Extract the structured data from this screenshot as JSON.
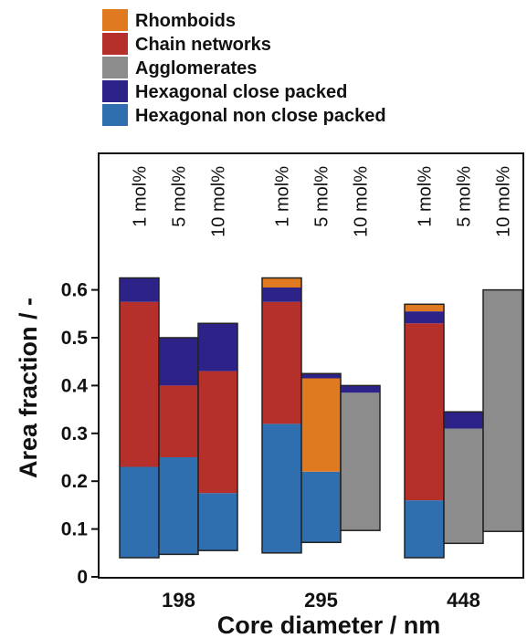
{
  "chart_data": {
    "type": "bar",
    "title": "",
    "xlabel": "Core diameter / nm",
    "ylabel": "Area fraction / -",
    "ylim": [
      0,
      0.68
    ],
    "yticks": [
      "0",
      "0.1",
      "0.2",
      "0.3",
      "0.4",
      "0.5",
      "0.6"
    ],
    "legend": [
      {
        "name": "Rhomboids",
        "color": "#e07a20"
      },
      {
        "name": "Chain networks",
        "color": "#b5302a"
      },
      {
        "name": "Agglomerates",
        "color": "#8c8c8c"
      },
      {
        "name": "Hexagonal close packed",
        "color": "#2c2288"
      },
      {
        "name": "Hexagonal non close packed",
        "color": "#2f6fb0"
      }
    ],
    "groups": [
      {
        "category": "198",
        "bars": [
          {
            "label": "1 mol%",
            "base": 0.04,
            "top": 0.625,
            "layers": [
              [
                "Hexagonal non close packed",
                0.23
              ],
              [
                "Chain networks",
                0.575
              ],
              [
                "Hexagonal close packed",
                0.625
              ]
            ]
          },
          {
            "label": "5 mol%",
            "base": 0.047,
            "top": 0.5,
            "layers": [
              [
                "Hexagonal non close packed",
                0.25
              ],
              [
                "Chain networks",
                0.4
              ],
              [
                "Hexagonal close packed",
                0.5
              ]
            ]
          },
          {
            "label": "10 mol%",
            "base": 0.055,
            "top": 0.53,
            "layers": [
              [
                "Hexagonal non close packed",
                0.175
              ],
              [
                "Chain networks",
                0.43
              ],
              [
                "Hexagonal close packed",
                0.53
              ]
            ]
          }
        ]
      },
      {
        "category": "295",
        "bars": [
          {
            "label": "1 mol%",
            "base": 0.05,
            "top": 0.625,
            "layers": [
              [
                "Hexagonal non close packed",
                0.32
              ],
              [
                "Chain networks",
                0.575
              ],
              [
                "Hexagonal close packed",
                0.605
              ],
              [
                "Rhomboids",
                0.625
              ]
            ]
          },
          {
            "label": "5 mol%",
            "base": 0.072,
            "top": 0.425,
            "layers": [
              [
                "Hexagonal non close packed",
                0.22
              ],
              [
                "Rhomboids",
                0.415
              ],
              [
                "Hexagonal close packed",
                0.425
              ]
            ]
          },
          {
            "label": "10 mol%",
            "base": 0.097,
            "top": 0.4,
            "layers": [
              [
                "Agglomerates",
                0.385
              ],
              [
                "Hexagonal close packed",
                0.4
              ]
            ]
          }
        ]
      },
      {
        "category": "448",
        "bars": [
          {
            "label": "1 mol%",
            "base": 0.04,
            "top": 0.57,
            "layers": [
              [
                "Hexagonal non close packed",
                0.16
              ],
              [
                "Chain networks",
                0.53
              ],
              [
                "Hexagonal close packed",
                0.555
              ],
              [
                "Rhomboids",
                0.57
              ]
            ]
          },
          {
            "label": "5 mol%",
            "base": 0.07,
            "top": 0.345,
            "layers": [
              [
                "Agglomerates",
                0.31
              ],
              [
                "Hexagonal close packed",
                0.345
              ]
            ]
          },
          {
            "label": "10 mol%",
            "base": 0.095,
            "top": 0.6,
            "layers": [
              [
                "Agglomerates",
                0.6
              ]
            ]
          }
        ]
      }
    ]
  }
}
